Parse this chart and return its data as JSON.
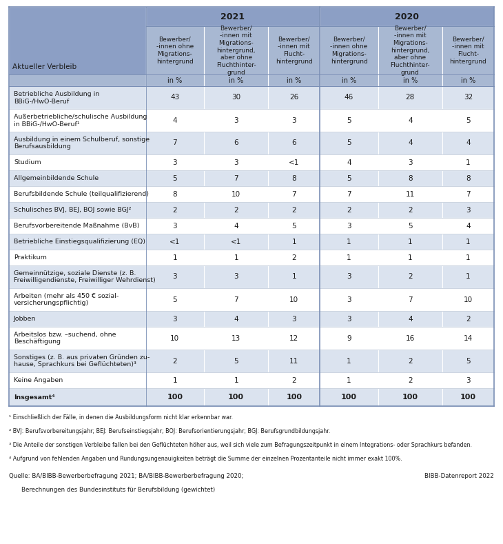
{
  "header_year_2021": "2021",
  "header_year_2020": "2020",
  "col_headers": [
    "Bewerber/\n-innen ohne\nMigrations-\nhintergrund",
    "Bewerber/\n-innen mit\nMigrations-\nhintergrund,\naber ohne\nFluchthinter-\ngrund",
    "Bewerber/\n-innen mit\nFlucht-\nhintergrund",
    "Bewerber/\n-innen ohne\nMigrations-\nhintergrund",
    "Bewerber/\n-innen mit\nMigrations-\nhintergrund,\naber ohne\nFluchthinter-\ngrund",
    "Bewerber/\n-innen mit\nFlucht-\nhintergrund"
  ],
  "unit_row": [
    "in %",
    "in %",
    "in %",
    "in %",
    "in %",
    "in %"
  ],
  "row_label_header": "Aktueller Verbleib",
  "rows": [
    {
      "label": "Betriebliche Ausbildung in\nBBiG-/HwO-Beruf",
      "values": [
        "43",
        "30",
        "26",
        "46",
        "28",
        "32"
      ],
      "bold": false
    },
    {
      "label": "Außerbetriebliche/schulische Ausbildung\nin BBiG-/HwO-Beruf¹",
      "values": [
        "4",
        "3",
        "3",
        "5",
        "4",
        "5"
      ],
      "bold": false
    },
    {
      "label": "Ausbildung in einem Schulberuf, sonstige\nBerufsausbildung",
      "values": [
        "7",
        "6",
        "6",
        "5",
        "4",
        "4"
      ],
      "bold": false
    },
    {
      "label": "Studium",
      "values": [
        "3",
        "3",
        "<1",
        "4",
        "3",
        "1"
      ],
      "bold": false
    },
    {
      "label": "Allgemeinbildende Schule",
      "values": [
        "5",
        "7",
        "8",
        "5",
        "8",
        "8"
      ],
      "bold": false
    },
    {
      "label": "Berufsbildende Schule (teilqualifizierend)",
      "values": [
        "8",
        "10",
        "7",
        "7",
        "11",
        "7"
      ],
      "bold": false
    },
    {
      "label": "Schulisches BVJ, BEJ, BOJ sowie BGJ²",
      "values": [
        "2",
        "2",
        "2",
        "2",
        "2",
        "3"
      ],
      "bold": false
    },
    {
      "label": "Berufsvorbereitende Maßnahme (BvB)",
      "values": [
        "3",
        "4",
        "5",
        "3",
        "5",
        "4"
      ],
      "bold": false
    },
    {
      "label": "Betriebliche Einstiegsqualifizierung (EQ)",
      "values": [
        "<1",
        "<1",
        "1",
        "1",
        "1",
        "1"
      ],
      "bold": false
    },
    {
      "label": "Praktikum",
      "values": [
        "1",
        "1",
        "2",
        "1",
        "1",
        "1"
      ],
      "bold": false
    },
    {
      "label": "Gemeinnützige, soziale Dienste (z. B.\nFreiwilligendienste, Freiwilliger Wehrdienst)",
      "values": [
        "3",
        "3",
        "1",
        "3",
        "2",
        "1"
      ],
      "bold": false
    },
    {
      "label": "Arbeiten (mehr als 450 € sozial-\nversicherungspflichtig)",
      "values": [
        "5",
        "7",
        "10",
        "3",
        "7",
        "10"
      ],
      "bold": false
    },
    {
      "label": "Jobben",
      "values": [
        "3",
        "4",
        "3",
        "3",
        "4",
        "2"
      ],
      "bold": false
    },
    {
      "label": "Arbeitslos bzw. –suchend, ohne\nBeschäftigung",
      "values": [
        "10",
        "13",
        "12",
        "9",
        "16",
        "14"
      ],
      "bold": false
    },
    {
      "label": "Sonstiges (z. B. aus privaten Gründen zu-\nhause, Sprachkurs bei Geflüchteten)³",
      "values": [
        "2",
        "5",
        "11",
        "1",
        "2",
        "5"
      ],
      "bold": false
    },
    {
      "label": "Keine Angaben",
      "values": [
        "1",
        "1",
        "2",
        "1",
        "2",
        "3"
      ],
      "bold": false
    },
    {
      "label": "Insgesamt⁴",
      "values": [
        "100",
        "100",
        "100",
        "100",
        "100",
        "100"
      ],
      "bold": true
    }
  ],
  "footnotes": [
    "¹ Einschließlich der Fälle, in denen die Ausbildungsform nicht klar erkennbar war.",
    "² BVJ: Berufsvorbereitungsjahr; BEJ: Berufseinstiegsjahr; BOJ: Berufsorientierungsjahr; BGJ: Berufsgrundbildungsjahr.",
    "³ Die Anteile der sonstigen Verbleibe fallen bei den Geflüchteten höher aus, weil sich viele zum Befragungszeitpunkt in einem Integrations- oder Sprachkurs befanden.",
    "⁴ Aufgrund von fehlenden Angaben und Rundungsungenauigkeiten beträgt die Summe der einzelnen Prozentanteile nicht immer exakt 100%."
  ],
  "source_line1": "Quelle: BA/BIBB-Bewerberbefragung 2021; BA/BIBB-Bewerberbefragung 2020;",
  "source_line2": "Berechnungen des Bundesinstituts für Berufsbildung (gewichtet)",
  "source_right": "BIBB-Datenreport 2022",
  "bg_header": "#8c9fc5",
  "bg_subheader": "#a8b8d2",
  "bg_unit": "#a8b8d2",
  "bg_row_even": "#dbe3ef",
  "bg_row_odd": "#ffffff",
  "bg_total_label": "#dbe3ef",
  "bg_total_val": "#dbe3ef",
  "text_dark": "#1c1c1c",
  "sep_color": "#7a8fb5"
}
